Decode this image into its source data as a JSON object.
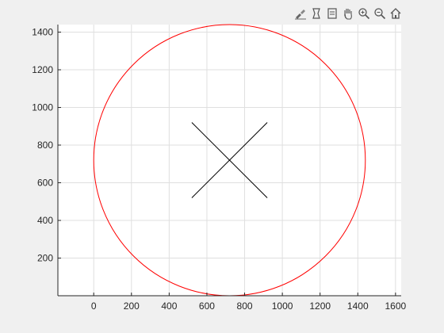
{
  "toolbar": {
    "buttons": [
      {
        "name": "brush-data-icon"
      },
      {
        "name": "data-tips-icon"
      },
      {
        "name": "rotate-icon"
      },
      {
        "name": "pan-icon"
      },
      {
        "name": "zoom-in-icon"
      },
      {
        "name": "zoom-out-icon"
      },
      {
        "name": "home-icon"
      }
    ]
  },
  "chart_data": {
    "type": "line",
    "title": "",
    "xlabel": "",
    "ylabel": "",
    "xlim": [
      -190,
      1630
    ],
    "ylim": [
      0,
      1440
    ],
    "grid": true,
    "xticks": [
      0,
      200,
      400,
      600,
      800,
      1000,
      1200,
      1400,
      1600
    ],
    "yticks": [
      200,
      400,
      600,
      800,
      1000,
      1200,
      1400
    ],
    "series": [
      {
        "kind": "circle",
        "color": "#ff0000",
        "center": [
          720,
          720
        ],
        "radius": 720
      },
      {
        "kind": "segment",
        "color": "#000000",
        "points": [
          [
            520,
            920
          ],
          [
            920,
            520
          ]
        ]
      },
      {
        "kind": "segment",
        "color": "#000000",
        "points": [
          [
            520,
            520
          ],
          [
            920,
            920
          ]
        ]
      }
    ]
  }
}
